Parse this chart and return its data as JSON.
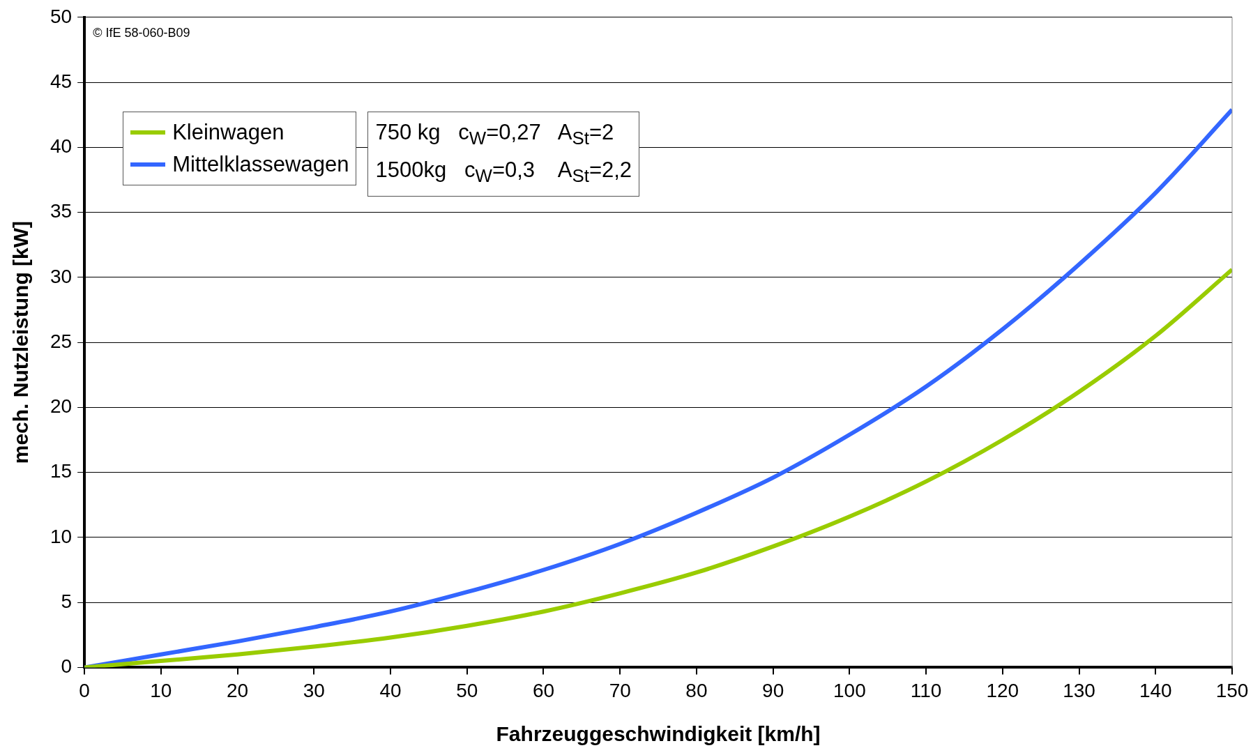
{
  "chart_data": {
    "type": "line",
    "xlabel": "Fahrzeuggeschwindigkeit [km/h]",
    "ylabel": "mech. Nutzleistung [kW]",
    "x": [
      0,
      10,
      20,
      30,
      40,
      50,
      60,
      70,
      80,
      90,
      100,
      110,
      120,
      130,
      140,
      150
    ],
    "series": [
      {
        "name": "Kleinwagen",
        "color": "#99cc00",
        "values": [
          0,
          0.5,
          1.0,
          1.6,
          2.3,
          3.2,
          4.3,
          5.7,
          7.3,
          9.3,
          11.6,
          14.3,
          17.5,
          21.2,
          25.5,
          30.6
        ]
      },
      {
        "name": "Mittelklassewagen",
        "color": "#3366ff",
        "values": [
          0,
          1.0,
          2.0,
          3.1,
          4.3,
          5.8,
          7.5,
          9.5,
          11.9,
          14.6,
          17.9,
          21.6,
          26.0,
          31.0,
          36.5,
          42.9
        ]
      }
    ],
    "xlim": [
      0,
      150
    ],
    "xticks": [
      0,
      10,
      20,
      30,
      40,
      50,
      60,
      70,
      80,
      90,
      100,
      110,
      120,
      130,
      140,
      150
    ],
    "ylim": [
      0,
      50
    ],
    "yticks": [
      0,
      5,
      10,
      15,
      20,
      25,
      30,
      35,
      40,
      45,
      50
    ],
    "grid": "y",
    "legend": "top left",
    "marker": "none",
    "line_style": "solid",
    "annotations": [
      "© IfE 58-060-B09",
      "750 kg   c$_{W}$=0,27   A$_{St}$=2",
      "1500kg   c$_{W}$=0,3    A$_{St}$=2,2"
    ]
  }
}
